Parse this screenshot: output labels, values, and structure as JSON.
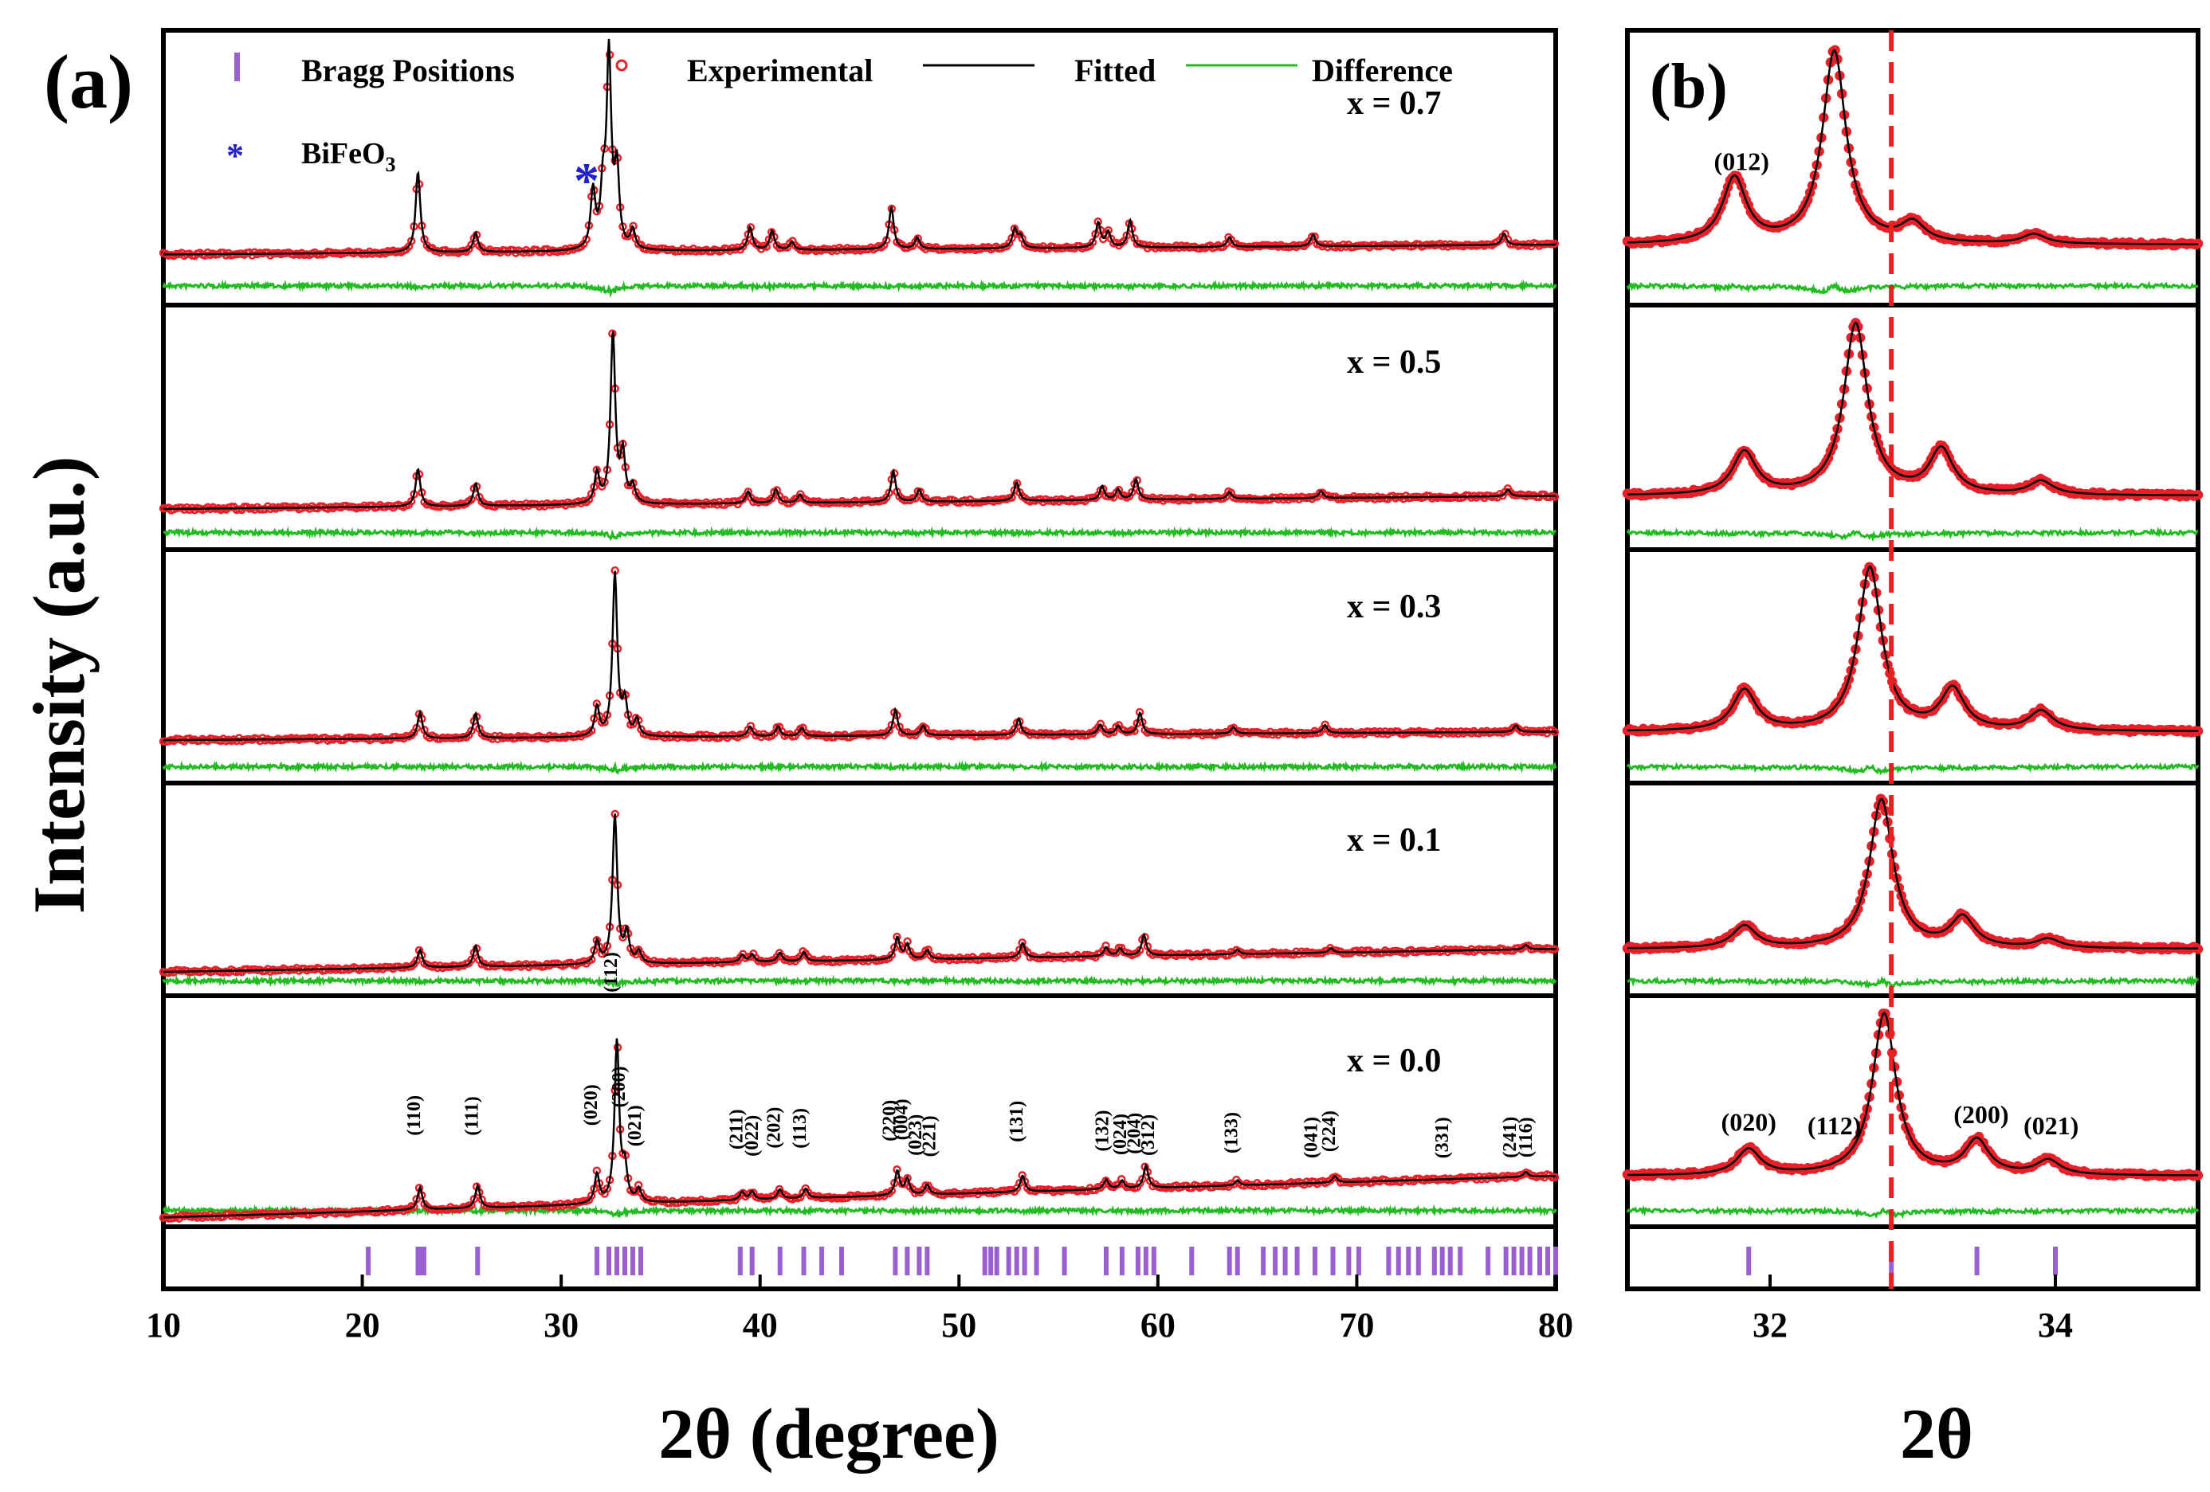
{
  "figure": {
    "panel_a_label": "(a)",
    "panel_b_label": "(b)",
    "ylabel": "Intensity (a.u.)",
    "xlabel_a": "2θ (degree)",
    "xlabel_b": "2θ"
  },
  "legend": {
    "bragg": "Bragg Positions",
    "experimental": "Experimental",
    "fitted": "Fitted",
    "difference": "Difference",
    "impurity": "BiFeO",
    "impurity_sub": "3"
  },
  "colors": {
    "experimental": "#e8202a",
    "fitted": "#000000",
    "difference": "#22bb22",
    "bragg": "#9a5fd0",
    "impurity": "#2222cc",
    "guide": "#e82020"
  },
  "chart_data": [
    {
      "type": "line",
      "name": "panel-a",
      "title": "",
      "xlabel": "2θ (degree)",
      "ylabel": "Intensity (a.u.)",
      "xlim": [
        10,
        80
      ],
      "xticks": [
        10,
        20,
        30,
        40,
        50,
        60,
        70,
        80
      ],
      "series": [
        {
          "name": "Experimental",
          "marker": "open-circle"
        },
        {
          "name": "Fitted",
          "style": "line"
        },
        {
          "name": "Difference",
          "style": "line"
        },
        {
          "name": "Bragg Positions",
          "marker": "tick"
        }
      ],
      "compositions": [
        {
          "label": "x = 0.7",
          "peaks": [
            [
              22.8,
              0.42
            ],
            [
              25.7,
              0.1
            ],
            [
              31.6,
              0.3
            ],
            [
              32.1,
              0.28
            ],
            [
              32.4,
              1.0
            ],
            [
              32.8,
              0.4
            ],
            [
              33.6,
              0.1
            ],
            [
              39.5,
              0.12
            ],
            [
              40.6,
              0.1
            ],
            [
              41.6,
              0.04
            ],
            [
              46.6,
              0.22
            ],
            [
              47.9,
              0.06
            ],
            [
              52.8,
              0.1
            ],
            [
              53.1,
              0.06
            ],
            [
              57.0,
              0.13
            ],
            [
              57.5,
              0.08
            ],
            [
              58.6,
              0.14
            ],
            [
              63.6,
              0.05
            ],
            [
              67.8,
              0.06
            ],
            [
              77.4,
              0.06
            ]
          ]
        },
        {
          "label": "x = 0.5",
          "peaks": [
            [
              22.8,
              0.22
            ],
            [
              25.7,
              0.13
            ],
            [
              31.8,
              0.18
            ],
            [
              32.6,
              1.0
            ],
            [
              33.1,
              0.28
            ],
            [
              33.6,
              0.1
            ],
            [
              39.4,
              0.07
            ],
            [
              40.8,
              0.08
            ],
            [
              42.0,
              0.05
            ],
            [
              46.7,
              0.18
            ],
            [
              48.0,
              0.07
            ],
            [
              52.9,
              0.11
            ],
            [
              57.2,
              0.08
            ],
            [
              58.0,
              0.06
            ],
            [
              58.9,
              0.12
            ],
            [
              63.6,
              0.04
            ],
            [
              68.2,
              0.04
            ],
            [
              77.6,
              0.04
            ]
          ]
        },
        {
          "label": "x = 0.3",
          "peaks": [
            [
              22.9,
              0.16
            ],
            [
              25.7,
              0.15
            ],
            [
              31.8,
              0.18
            ],
            [
              32.7,
              1.0
            ],
            [
              33.2,
              0.2
            ],
            [
              33.8,
              0.1
            ],
            [
              39.5,
              0.06
            ],
            [
              40.9,
              0.06
            ],
            [
              42.1,
              0.05
            ],
            [
              46.8,
              0.16
            ],
            [
              48.2,
              0.06
            ],
            [
              53.0,
              0.1
            ],
            [
              57.1,
              0.06
            ],
            [
              58.0,
              0.05
            ],
            [
              59.1,
              0.13
            ],
            [
              63.8,
              0.04
            ],
            [
              68.4,
              0.05
            ],
            [
              78.0,
              0.04
            ]
          ]
        },
        {
          "label": "x = 0.1",
          "peaks": [
            [
              22.9,
              0.12
            ],
            [
              25.7,
              0.14
            ],
            [
              31.8,
              0.15
            ],
            [
              32.7,
              1.0
            ],
            [
              33.3,
              0.2
            ],
            [
              33.9,
              0.08
            ],
            [
              39.1,
              0.05
            ],
            [
              39.6,
              0.05
            ],
            [
              41.0,
              0.06
            ],
            [
              42.2,
              0.06
            ],
            [
              46.9,
              0.15
            ],
            [
              47.4,
              0.1
            ],
            [
              48.4,
              0.06
            ],
            [
              53.2,
              0.1
            ],
            [
              57.4,
              0.06
            ],
            [
              58.1,
              0.05
            ],
            [
              59.3,
              0.14
            ],
            [
              64.0,
              0.03
            ],
            [
              68.7,
              0.03
            ],
            [
              78.5,
              0.03
            ]
          ]
        },
        {
          "label": "x = 0.0",
          "peaks": [
            [
              22.9,
              0.14
            ],
            [
              25.8,
              0.14
            ],
            [
              31.8,
              0.18
            ],
            [
              32.8,
              1.0
            ],
            [
              33.2,
              0.2
            ],
            [
              33.9,
              0.08
            ],
            [
              39.1,
              0.05
            ],
            [
              39.6,
              0.05
            ],
            [
              41.0,
              0.06
            ],
            [
              42.3,
              0.06
            ],
            [
              46.9,
              0.15
            ],
            [
              47.4,
              0.1
            ],
            [
              48.4,
              0.06
            ],
            [
              53.2,
              0.1
            ],
            [
              57.4,
              0.06
            ],
            [
              58.2,
              0.05
            ],
            [
              59.4,
              0.14
            ],
            [
              64.0,
              0.03
            ],
            [
              68.9,
              0.04
            ],
            [
              78.5,
              0.03
            ]
          ]
        }
      ],
      "miller_labels": [
        {
          "x": 22.9,
          "text": "(110)"
        },
        {
          "x": 25.8,
          "text": "(111)"
        },
        {
          "x": 31.8,
          "text": "(020)"
        },
        {
          "x": 32.8,
          "text": "(112)"
        },
        {
          "x": 33.2,
          "text": "(200)"
        },
        {
          "x": 34.0,
          "text": "(021)"
        },
        {
          "x": 39.1,
          "text": "(211)"
        },
        {
          "x": 39.9,
          "text": "(022)"
        },
        {
          "x": 41.0,
          "text": "(202)"
        },
        {
          "x": 42.3,
          "text": "(113)"
        },
        {
          "x": 46.8,
          "text": "(220)"
        },
        {
          "x": 47.4,
          "text": "(004)"
        },
        {
          "x": 48.1,
          "text": "(023)"
        },
        {
          "x": 48.8,
          "text": "(221)"
        },
        {
          "x": 53.2,
          "text": "(131)"
        },
        {
          "x": 57.5,
          "text": "(132)"
        },
        {
          "x": 58.4,
          "text": "(024)"
        },
        {
          "x": 59.1,
          "text": "(204)"
        },
        {
          "x": 59.8,
          "text": "(312)"
        },
        {
          "x": 64.0,
          "text": "(133)"
        },
        {
          "x": 68.0,
          "text": "(041)"
        },
        {
          "x": 68.9,
          "text": "(224)"
        },
        {
          "x": 74.6,
          "text": "(331)"
        },
        {
          "x": 78.0,
          "text": "(241)"
        },
        {
          "x": 78.8,
          "text": "(116)"
        }
      ],
      "bragg_positions": [
        20.3,
        22.8,
        23.0,
        23.1,
        25.8,
        31.8,
        32.4,
        32.8,
        33.2,
        33.6,
        34.0,
        39.0,
        39.6,
        41.0,
        42.2,
        43.1,
        44.1,
        46.8,
        47.4,
        48.0,
        48.4,
        51.3,
        51.6,
        51.9,
        52.5,
        52.9,
        53.3,
        53.9,
        55.3,
        57.4,
        58.2,
        59.0,
        59.4,
        59.8,
        61.7,
        63.6,
        64.0,
        65.3,
        65.9,
        66.4,
        67.0,
        67.9,
        68.8,
        69.6,
        70.1,
        71.6,
        72.1,
        72.6,
        73.1,
        73.9,
        74.3,
        74.7,
        75.2,
        76.6,
        77.5,
        77.9,
        78.3,
        78.7,
        79.2,
        79.6,
        80.0
      ]
    },
    {
      "type": "line",
      "name": "panel-b",
      "xlabel": "2θ",
      "xlim": [
        31.0,
        35.0
      ],
      "xticks": [
        32,
        34
      ],
      "reference_line_x": 32.85,
      "compositions": [
        {
          "label": "x = 0.7",
          "peaks": [
            [
              31.75,
              0.34
            ],
            [
              32.45,
              1.0
            ],
            [
              33.0,
              0.1
            ],
            [
              33.85,
              0.05
            ]
          ]
        },
        {
          "label": "x = 0.5",
          "peaks": [
            [
              31.82,
              0.25
            ],
            [
              32.6,
              1.0
            ],
            [
              33.2,
              0.26
            ],
            [
              33.9,
              0.08
            ]
          ]
        },
        {
          "label": "x = 0.3",
          "peaks": [
            [
              31.82,
              0.25
            ],
            [
              32.7,
              1.0
            ],
            [
              33.28,
              0.25
            ],
            [
              33.9,
              0.12
            ]
          ]
        },
        {
          "label": "x = 0.1",
          "peaks": [
            [
              31.82,
              0.15
            ],
            [
              32.78,
              1.0
            ],
            [
              33.35,
              0.2
            ],
            [
              33.95,
              0.06
            ]
          ]
        },
        {
          "label": "x = 0.0",
          "peaks": [
            [
              31.85,
              0.16
            ],
            [
              32.8,
              1.0
            ],
            [
              33.45,
              0.21
            ],
            [
              33.95,
              0.09
            ]
          ]
        }
      ],
      "miller_labels": [
        {
          "x": 31.85,
          "text": "(020)"
        },
        {
          "x": 32.45,
          "text": "(112)"
        },
        {
          "x": 33.48,
          "text": "(200)"
        },
        {
          "x": 33.97,
          "text": "(021)"
        },
        {
          "x": 31.8,
          "text": "(012)",
          "panel": "x = 0.7"
        }
      ],
      "bragg_positions": [
        31.85,
        32.85,
        33.45,
        34.0
      ]
    }
  ]
}
